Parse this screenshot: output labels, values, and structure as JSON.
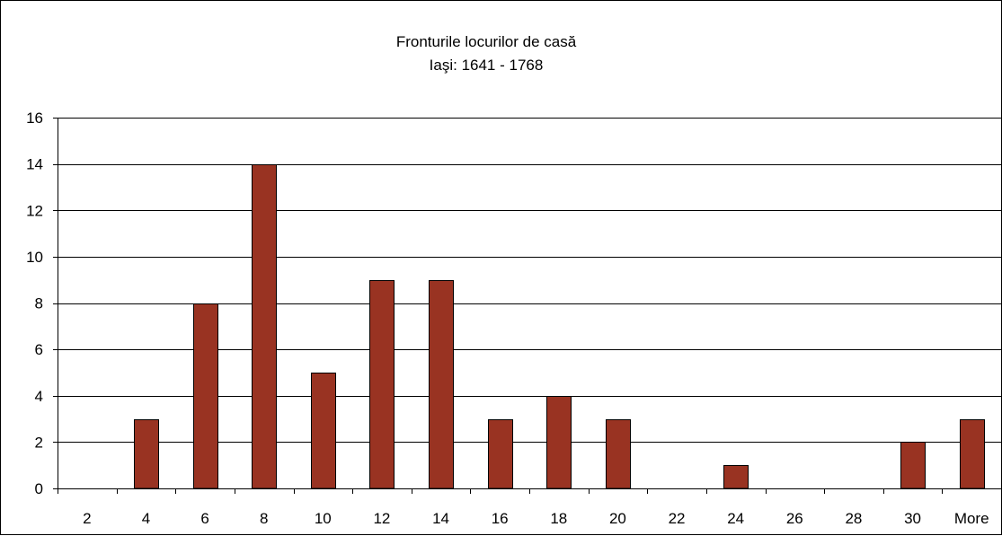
{
  "chart_data": {
    "type": "bar",
    "title": "Fronturile locurilor de casă",
    "subtitle": "Iaşi: 1641 - 1768",
    "xlabel": "",
    "ylabel": "",
    "categories": [
      "2",
      "4",
      "6",
      "8",
      "10",
      "12",
      "14",
      "16",
      "18",
      "20",
      "22",
      "24",
      "26",
      "28",
      "30",
      "More"
    ],
    "values": [
      0,
      3,
      8,
      14,
      5,
      9,
      9,
      3,
      4,
      3,
      0,
      1,
      0,
      0,
      2,
      3
    ],
    "ylim": [
      0,
      16
    ],
    "yticks": [
      "0",
      "2",
      "4",
      "6",
      "8",
      "10",
      "12",
      "14",
      "16"
    ],
    "grid": true,
    "legend": "none",
    "bar_color": "#993322"
  }
}
